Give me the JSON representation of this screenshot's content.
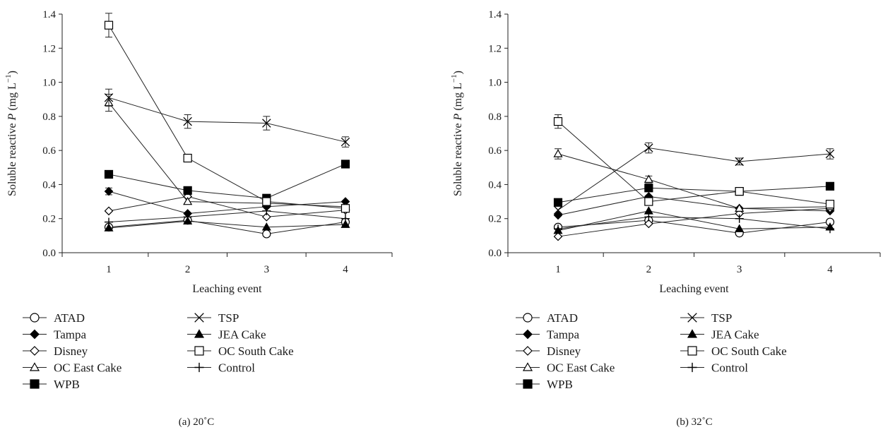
{
  "chart_data": [
    {
      "type": "line",
      "caption": "(a)  20˚C",
      "xlabel": "Leaching event",
      "ylabel_prefix": "Soluble reactive ",
      "ylabel_var": "P",
      "ylabel_unit": " (mg L",
      "ylabel_exp": "−1",
      "ylabel_close": ")",
      "x": [
        1,
        2,
        3,
        4
      ],
      "x_ticks": [
        "1",
        "2",
        "3",
        "4"
      ],
      "ylim": [
        0,
        1.4
      ],
      "y_ticks": [
        "0.0",
        "0.2",
        "0.4",
        "0.6",
        "0.8",
        "1.0",
        "1.2",
        "1.4"
      ],
      "grid": false,
      "legend_placement": "bottom",
      "series": [
        {
          "name": "ATAD",
          "marker": "circle-open",
          "values": [
            0.15,
            0.19,
            0.11,
            0.18
          ],
          "err": [
            0,
            0,
            0,
            0.02
          ]
        },
        {
          "name": "Tampa",
          "marker": "diamond-filled",
          "values": [
            0.36,
            0.23,
            0.27,
            0.3
          ],
          "err": [
            0.02,
            0,
            0,
            0
          ]
        },
        {
          "name": "Disney",
          "marker": "diamond-open",
          "values": [
            0.245,
            0.33,
            0.21,
            0.25
          ],
          "err": [
            0,
            0,
            0,
            0
          ]
        },
        {
          "name": "OC East Cake",
          "marker": "triangle-open",
          "values": [
            0.88,
            0.3,
            0.29,
            0.27
          ],
          "err": [
            0.05,
            0,
            0,
            0
          ]
        },
        {
          "name": "WPB",
          "marker": "square-filled",
          "values": [
            0.46,
            0.365,
            0.32,
            0.52
          ],
          "err": [
            0,
            0,
            0,
            0.02
          ]
        },
        {
          "name": "TSP",
          "marker": "x",
          "values": [
            0.91,
            0.77,
            0.76,
            0.65
          ],
          "err": [
            0.05,
            0.04,
            0.04,
            0.03
          ]
        },
        {
          "name": "JEA Cake",
          "marker": "triangle-filled",
          "values": [
            0.145,
            0.185,
            0.15,
            0.165
          ],
          "err": [
            0,
            0,
            0,
            0
          ]
        },
        {
          "name": "OC South Cake",
          "marker": "square-open",
          "values": [
            1.335,
            0.555,
            0.3,
            0.26
          ],
          "err": [
            0.07,
            0.02,
            0,
            0
          ]
        },
        {
          "name": "Control",
          "marker": "plus",
          "values": [
            0.18,
            0.21,
            0.245,
            0.2
          ],
          "err": [
            0,
            0,
            0,
            0
          ]
        }
      ]
    },
    {
      "type": "line",
      "caption": "(b)  32˚C",
      "xlabel": "Leaching event",
      "ylabel_prefix": "Soluble reactive ",
      "ylabel_var": "P",
      "ylabel_unit": " (mg L",
      "ylabel_exp": "−1",
      "ylabel_close": ")",
      "x": [
        1,
        2,
        3,
        4
      ],
      "x_ticks": [
        "1",
        "2",
        "3",
        "4"
      ],
      "ylim": [
        0,
        1.4
      ],
      "y_ticks": [
        "0.0",
        "0.2",
        "0.4",
        "0.6",
        "0.8",
        "1.0",
        "1.2",
        "1.4"
      ],
      "grid": false,
      "legend_placement": "bottom",
      "series": [
        {
          "name": "ATAD",
          "marker": "circle-open",
          "values": [
            0.15,
            0.19,
            0.115,
            0.18
          ],
          "err": [
            0,
            0,
            0,
            0
          ]
        },
        {
          "name": "Tampa",
          "marker": "diamond-filled",
          "values": [
            0.22,
            0.33,
            0.26,
            0.245
          ],
          "err": [
            0,
            0,
            0,
            0
          ]
        },
        {
          "name": "Disney",
          "marker": "diamond-open",
          "values": [
            0.095,
            0.17,
            0.23,
            0.26
          ],
          "err": [
            0,
            0,
            0,
            0
          ]
        },
        {
          "name": "OC East Cake",
          "marker": "triangle-open",
          "values": [
            0.58,
            0.43,
            0.26,
            0.27
          ],
          "err": [
            0.03,
            0.02,
            0,
            0
          ]
        },
        {
          "name": "WPB",
          "marker": "square-filled",
          "values": [
            0.295,
            0.38,
            0.36,
            0.39
          ],
          "err": [
            0,
            0,
            0,
            0
          ]
        },
        {
          "name": "TSP",
          "marker": "x",
          "values": [
            0.25,
            0.615,
            0.535,
            0.58
          ],
          "err": [
            0,
            0.03,
            0.02,
            0.03
          ]
        },
        {
          "name": "JEA Cake",
          "marker": "triangle-filled",
          "values": [
            0.13,
            0.245,
            0.14,
            0.15
          ],
          "err": [
            0,
            0,
            0,
            0
          ]
        },
        {
          "name": "OC South Cake",
          "marker": "square-open",
          "values": [
            0.77,
            0.3,
            0.36,
            0.285
          ],
          "err": [
            0.04,
            0,
            0,
            0
          ]
        },
        {
          "name": "Control",
          "marker": "plus",
          "values": [
            0.14,
            0.21,
            0.2,
            0.14
          ],
          "err": [
            0,
            0,
            0,
            0
          ]
        }
      ]
    }
  ]
}
